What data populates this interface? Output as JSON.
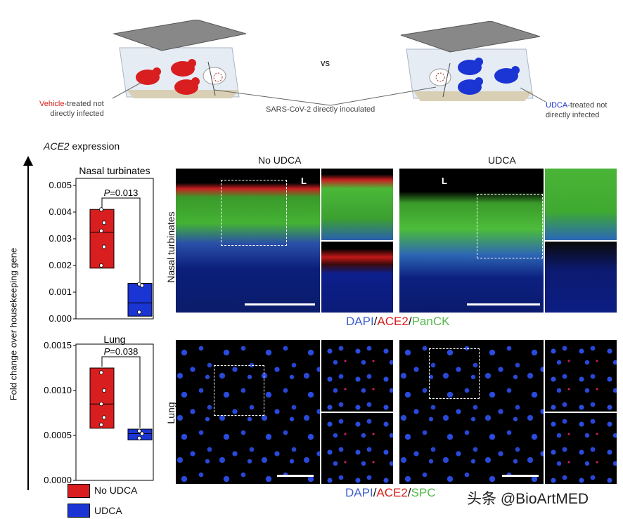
{
  "schematic": {
    "vs": "vs",
    "left_label_colored": "Vehicle",
    "left_label_rest_1": "-treated not",
    "left_label_rest_2": "directly infected",
    "center_label": "SARS-CoV-2 directly inoculated",
    "right_label_colored": "UDCA",
    "right_label_rest_1": "-treated not",
    "right_label_rest_2": "directly infected"
  },
  "expression": {
    "title_gene": "ACE2",
    "title_rest": " expression",
    "y_axis_label": "Fold change over housekeeping gene"
  },
  "legend": {
    "items": [
      {
        "label": "No UDCA",
        "color": "#d81e1e"
      },
      {
        "label": "UDCA",
        "color": "#1b34d4"
      }
    ]
  },
  "chart_data": [
    {
      "type": "box",
      "title": "Nasal turbinates",
      "ylim": [
        0,
        0.005
      ],
      "yticks": [
        "0.005",
        "0.004",
        "0.003",
        "0.002",
        "0.001",
        "0.000"
      ],
      "ytick_values": [
        0.005,
        0.004,
        0.003,
        0.002,
        0.001,
        0.0
      ],
      "pvalue_p": "P",
      "pvalue_rest": "=0.013",
      "series": [
        {
          "name": "No UDCA",
          "color": "#d81e1e",
          "min": 0.0019,
          "median": 0.00325,
          "max": 0.0041,
          "points": [
            0.0041,
            0.0036,
            0.0033,
            0.0027,
            0.002
          ]
        },
        {
          "name": "UDCA",
          "color": "#1b34d4",
          "min": 0.0001,
          "median": 0.0006,
          "max": 0.00133,
          "points": [
            0.0013,
            0.00125,
            0.00025
          ]
        }
      ]
    },
    {
      "type": "box",
      "title": "Lung",
      "ylim": [
        0,
        0.0015
      ],
      "yticks": [
        "0.0015",
        "0.0010",
        "0.0005",
        "0.0000"
      ],
      "ytick_values": [
        0.0015,
        0.001,
        0.0005,
        0.0
      ],
      "pvalue_p": "P",
      "pvalue_rest": "=0.038",
      "series": [
        {
          "name": "No UDCA",
          "color": "#d81e1e",
          "min": 0.00058,
          "median": 0.00085,
          "max": 0.00125,
          "points": [
            0.0012,
            0.001,
            0.00085,
            0.0007,
            0.00062
          ]
        },
        {
          "name": "UDCA",
          "color": "#1b34d4",
          "min": 0.00045,
          "median": 0.00052,
          "max": 0.00057,
          "points": [
            0.00055,
            0.00052,
            0.00047
          ]
        }
      ]
    }
  ],
  "micrographs": {
    "col_no_udca": "No UDCA",
    "col_udca": "UDCA",
    "row_nasal": "Nasal turbinates",
    "row_lung": "Lung",
    "lumen_label": "L",
    "stain_nasal": {
      "dapi": "DAPI",
      "sep1": "/",
      "ace2": "ACE2",
      "sep2": "/",
      "marker": "PanCK"
    },
    "stain_lung": {
      "dapi": "DAPI",
      "sep1": "/",
      "ace2": "ACE2",
      "sep2": "/",
      "marker": "SPC"
    }
  },
  "watermark": "头条 @BioArtMED",
  "colors": {
    "red": "#d81e1e",
    "blue": "#1b34d4",
    "green": "#53b848",
    "dapi": "#3f5fcf"
  }
}
